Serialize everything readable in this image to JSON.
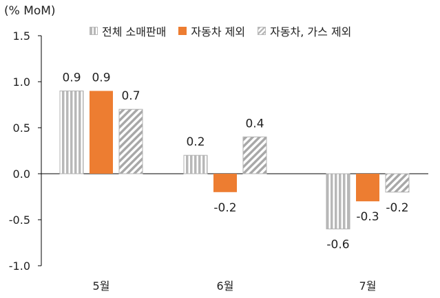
{
  "chart_data": {
    "type": "bar",
    "unit_label": "(% MoM)",
    "categories": [
      "5월",
      "6월",
      "7월"
    ],
    "series": [
      {
        "name": "전체 소매판매",
        "values": [
          0.9,
          0.2,
          -0.6
        ],
        "pattern": "vertical-stripes",
        "color": "#b8b8b8"
      },
      {
        "name": "자동차 제외",
        "values": [
          0.9,
          -0.2,
          -0.3
        ],
        "pattern": "solid",
        "color": "#ed7d31"
      },
      {
        "name": "자동차, 가스 제외",
        "values": [
          0.7,
          0.4,
          -0.2
        ],
        "pattern": "diagonal-stripes",
        "color": "#b8b8b8"
      }
    ],
    "ylim": [
      -1.0,
      1.5
    ],
    "yticks": [
      "1.5",
      "1.0",
      "0.5",
      "0.0",
      "-0.5",
      "-1.0"
    ],
    "ytick_values": [
      1.5,
      1.0,
      0.5,
      0.0,
      -0.5,
      -1.0
    ],
    "legend_position": "top",
    "grid": false
  }
}
